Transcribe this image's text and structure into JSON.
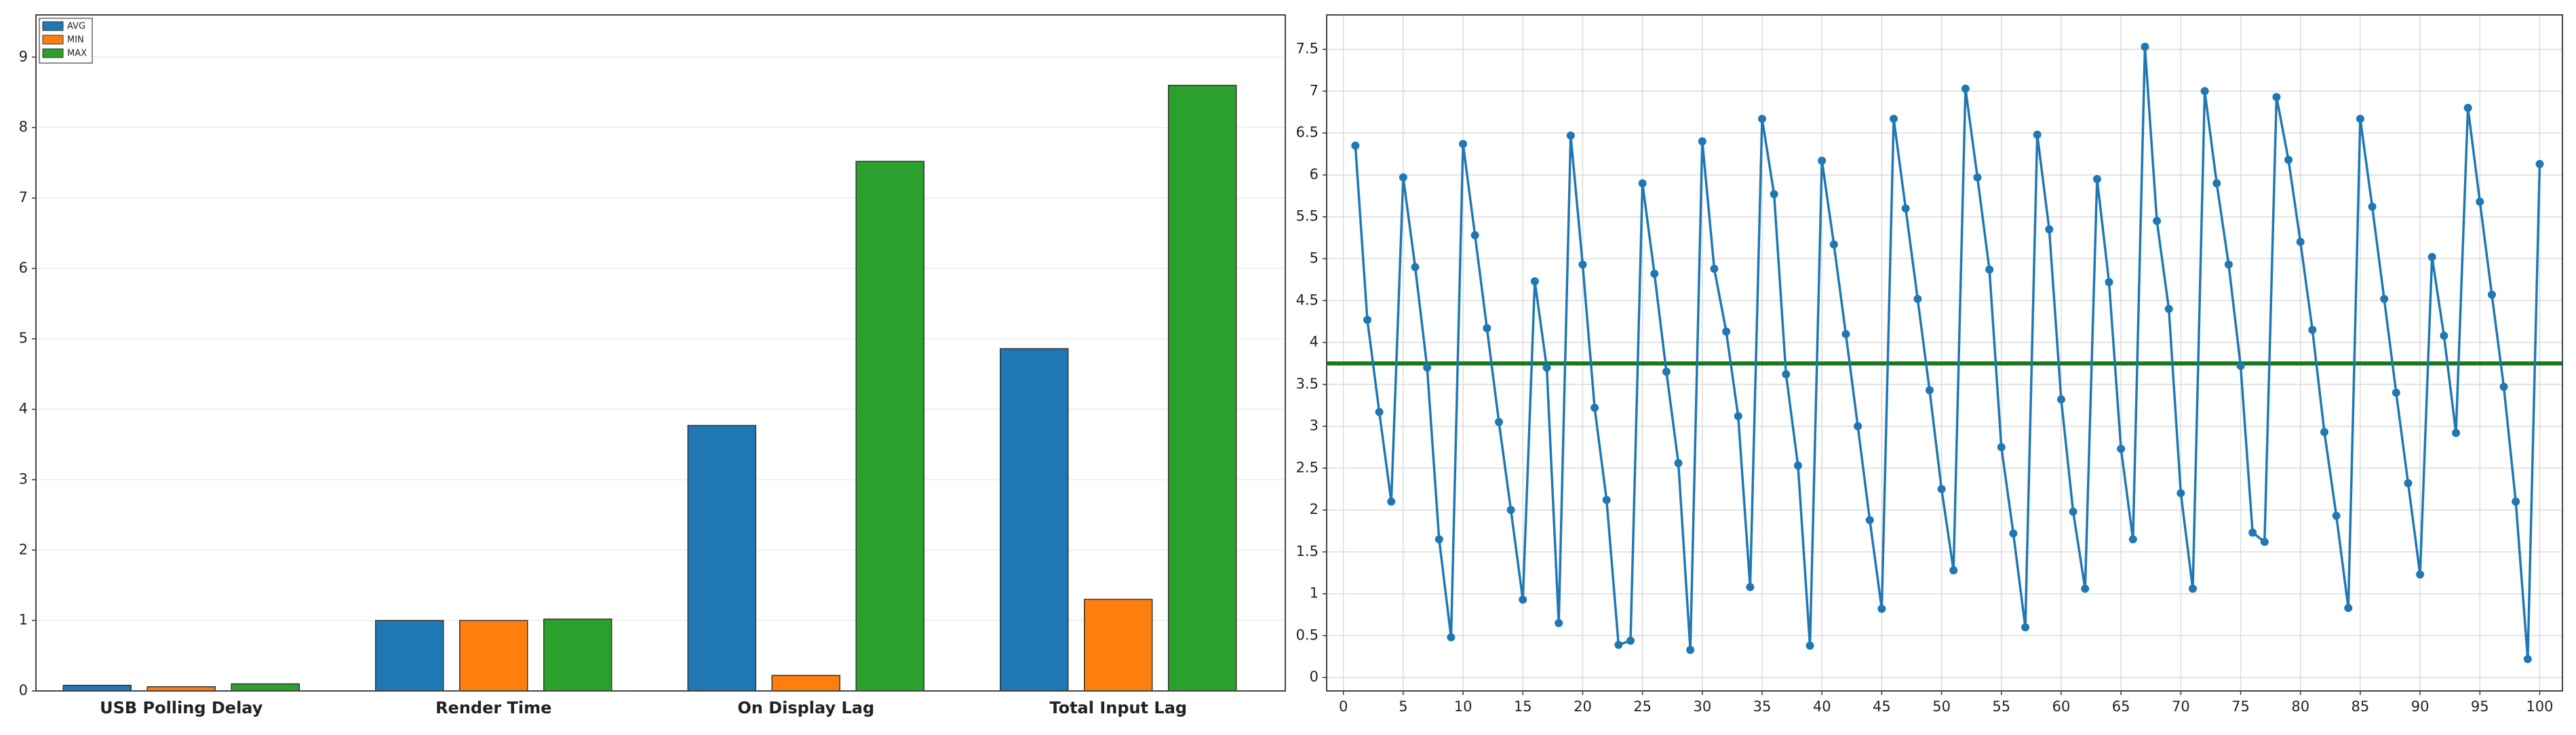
{
  "chart_data": [
    {
      "type": "bar",
      "categories": [
        "USB Polling Delay",
        "Render Time",
        "On Display Lag",
        "Total Input Lag"
      ],
      "series": [
        {
          "name": "AVG",
          "color": "#1f77b4",
          "values": [
            0.08,
            1.0,
            3.77,
            4.86
          ]
        },
        {
          "name": "MIN",
          "color": "#ff7f0e",
          "values": [
            0.06,
            1.0,
            0.22,
            1.3
          ]
        },
        {
          "name": "MAX",
          "color": "#2ca02c",
          "values": [
            0.1,
            1.02,
            7.52,
            8.6
          ]
        }
      ],
      "ylim": [
        0,
        9.6
      ],
      "yticks": [
        0,
        1,
        2,
        3,
        4,
        5,
        6,
        7,
        8,
        9
      ],
      "grid": true,
      "legend": "upper left"
    },
    {
      "type": "line",
      "x": [
        1,
        2,
        3,
        4,
        5,
        6,
        7,
        8,
        9,
        10,
        11,
        12,
        13,
        14,
        15,
        16,
        17,
        18,
        19,
        20,
        21,
        22,
        23,
        24,
        25,
        26,
        27,
        28,
        29,
        30,
        31,
        32,
        33,
        34,
        35,
        36,
        37,
        38,
        39,
        40,
        41,
        42,
        43,
        44,
        45,
        46,
        47,
        48,
        49,
        50,
        51,
        52,
        53,
        54,
        55,
        56,
        57,
        58,
        59,
        60,
        61,
        62,
        63,
        64,
        65,
        66,
        67,
        68,
        69,
        70,
        71,
        72,
        73,
        74,
        75,
        76,
        77,
        78,
        79,
        80,
        81,
        82,
        83,
        84,
        85,
        86,
        87,
        88,
        89,
        90,
        91,
        92,
        93,
        94,
        95,
        96,
        97,
        98,
        99,
        100
      ],
      "series": [
        {
          "color": "#1f77b4",
          "values": [
            6.35,
            4.27,
            3.17,
            2.1,
            5.97,
            4.9,
            3.7,
            1.65,
            0.48,
            6.37,
            5.28,
            4.17,
            3.05,
            2.0,
            0.93,
            4.73,
            3.7,
            0.65,
            6.47,
            4.93,
            3.22,
            2.12,
            0.39,
            0.44,
            5.9,
            4.82,
            3.65,
            2.56,
            0.33,
            6.4,
            4.88,
            4.13,
            3.12,
            1.08,
            6.67,
            5.77,
            3.62,
            2.53,
            0.38,
            6.17,
            5.17,
            4.1,
            3.0,
            1.88,
            0.82,
            6.67,
            5.6,
            4.52,
            3.43,
            2.25,
            1.28,
            7.03,
            5.97,
            4.87,
            2.75,
            1.72,
            0.6,
            6.48,
            5.35,
            3.32,
            1.98,
            1.06,
            5.95,
            4.72,
            2.73,
            1.65,
            7.53,
            5.45,
            4.4,
            2.2,
            1.06,
            7.0,
            5.9,
            4.93,
            3.72,
            1.73,
            1.62,
            6.93,
            6.18,
            5.2,
            4.15,
            2.93,
            1.93,
            0.83,
            6.67,
            5.62,
            4.52,
            3.4,
            2.32,
            1.23,
            5.02,
            4.08,
            2.92,
            6.8,
            5.68,
            4.57,
            3.47,
            2.1,
            0.22,
            6.13
          ]
        }
      ],
      "hline": {
        "value": 3.75,
        "color": "#1a7a1a"
      },
      "xlim": [
        -1.4,
        101.9
      ],
      "ylim": [
        -0.16,
        7.91
      ],
      "xticks": [
        0,
        5,
        10,
        15,
        20,
        25,
        30,
        35,
        40,
        45,
        50,
        55,
        60,
        65,
        70,
        75,
        80,
        85,
        90,
        95,
        100
      ],
      "yticks": [
        0,
        0.5,
        1,
        1.5,
        2,
        2.5,
        3,
        3.5,
        4,
        4.5,
        5,
        5.5,
        6,
        6.5,
        7,
        7.5
      ],
      "grid": true
    }
  ]
}
